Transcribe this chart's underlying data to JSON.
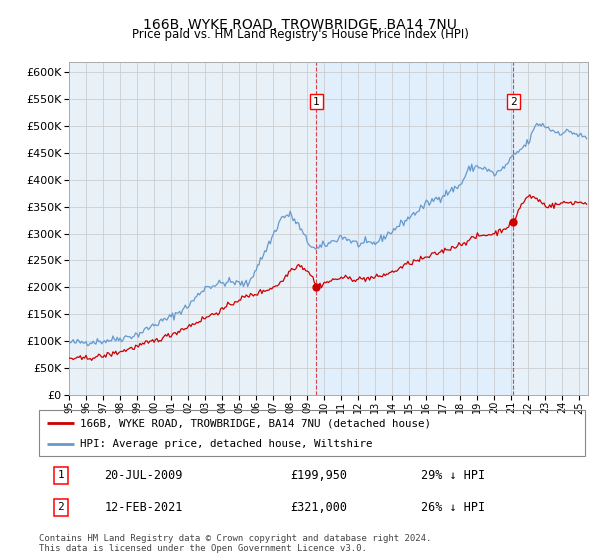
{
  "title1": "166B, WYKE ROAD, TROWBRIDGE, BA14 7NU",
  "title2": "Price paid vs. HM Land Registry's House Price Index (HPI)",
  "ylim": [
    0,
    620000
  ],
  "yticks": [
    0,
    50000,
    100000,
    150000,
    200000,
    250000,
    300000,
    350000,
    400000,
    450000,
    500000,
    550000,
    600000
  ],
  "xlim_start": 1995.0,
  "xlim_end": 2025.5,
  "background_color": "#ffffff",
  "plot_bg_color": "#e8f0f8",
  "grid_color": "#c8c8c8",
  "hpi_color": "#6699cc",
  "price_color": "#cc0000",
  "marker1_date": 2009.54,
  "marker1_price": 199950,
  "marker2_date": 2021.12,
  "marker2_price": 321000,
  "legend_price_label": "166B, WYKE ROAD, TROWBRIDGE, BA14 7NU (detached house)",
  "legend_hpi_label": "HPI: Average price, detached house, Wiltshire",
  "annotation1_date": "20-JUL-2009",
  "annotation1_price": "£199,950",
  "annotation1_pct": "29% ↓ HPI",
  "annotation2_date": "12-FEB-2021",
  "annotation2_price": "£321,000",
  "annotation2_pct": "26% ↓ HPI",
  "footnote": "Contains HM Land Registry data © Crown copyright and database right 2024.\nThis data is licensed under the Open Government Licence v3.0."
}
